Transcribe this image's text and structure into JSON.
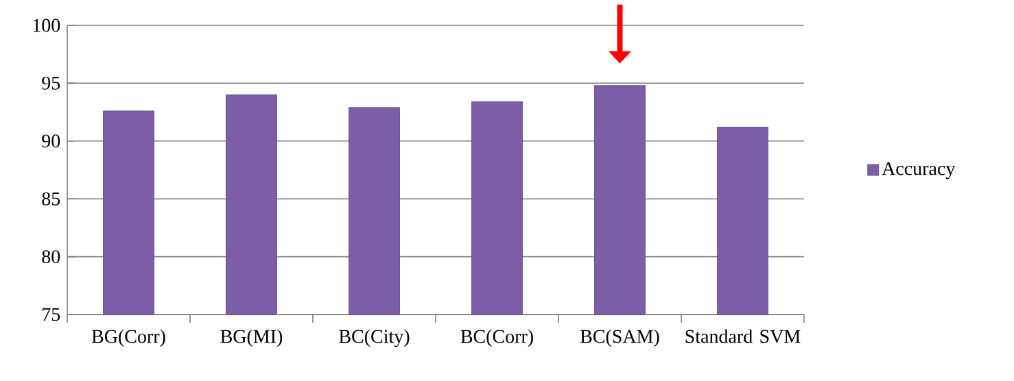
{
  "chart_data": {
    "type": "bar",
    "categories": [
      "BG(Corr)",
      "BG(MI)",
      "BC(City)",
      "BC(Corr)",
      "BC(SAM)",
      "Standard SVM"
    ],
    "series": [
      {
        "name": "Accuracy",
        "color": "#7b5ea7",
        "values": [
          92.6,
          94.0,
          92.9,
          93.4,
          94.8,
          91.2
        ]
      }
    ],
    "ylim": [
      75,
      100
    ],
    "yticks": [
      75,
      80,
      85,
      90,
      95,
      100
    ],
    "grid": "y",
    "legend": "right"
  }
}
